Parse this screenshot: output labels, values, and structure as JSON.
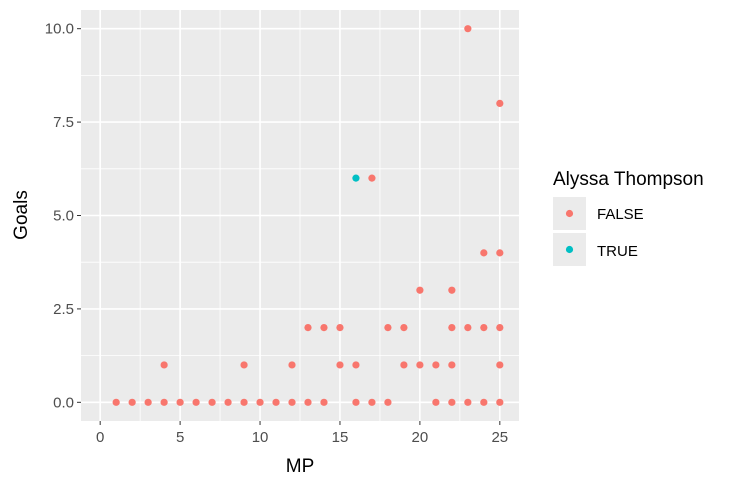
{
  "chart_data": {
    "type": "scatter",
    "xlabel": "MP",
    "ylabel": "Goals",
    "xlim": [
      -1.2,
      26.2
    ],
    "ylim": [
      -0.5,
      10.5
    ],
    "x_ticks": [
      0,
      5,
      10,
      15,
      20,
      25
    ],
    "y_ticks": [
      0,
      2.5,
      5,
      7.5,
      10
    ],
    "y_tick_labels": [
      "0.0",
      "2.5",
      "5.0",
      "7.5",
      "10.0"
    ],
    "grid": true,
    "legend": {
      "title": "Alyssa Thompson",
      "position": "right",
      "entries": [
        {
          "label": "FALSE",
          "color": "#F8766D"
        },
        {
          "label": "TRUE",
          "color": "#00BFC4"
        }
      ]
    },
    "series": [
      {
        "name": "FALSE",
        "color": "#F8766D",
        "points": [
          [
            1,
            0
          ],
          [
            2,
            0
          ],
          [
            3,
            0
          ],
          [
            4,
            0
          ],
          [
            4,
            1
          ],
          [
            5,
            0
          ],
          [
            6,
            0
          ],
          [
            7,
            0
          ],
          [
            8,
            0
          ],
          [
            9,
            0
          ],
          [
            9,
            1
          ],
          [
            10,
            0
          ],
          [
            11,
            0
          ],
          [
            12,
            0
          ],
          [
            12,
            1
          ],
          [
            13,
            0
          ],
          [
            13,
            2
          ],
          [
            14,
            0
          ],
          [
            14,
            2
          ],
          [
            15,
            1
          ],
          [
            15,
            2
          ],
          [
            16,
            0
          ],
          [
            16,
            1
          ],
          [
            17,
            0
          ],
          [
            17,
            6
          ],
          [
            18,
            0
          ],
          [
            18,
            2
          ],
          [
            19,
            1
          ],
          [
            19,
            2
          ],
          [
            20,
            1
          ],
          [
            20,
            3
          ],
          [
            21,
            0
          ],
          [
            21,
            1
          ],
          [
            22,
            0
          ],
          [
            22,
            1
          ],
          [
            22,
            2
          ],
          [
            22,
            3
          ],
          [
            23,
            0
          ],
          [
            23,
            2
          ],
          [
            23,
            10
          ],
          [
            24,
            0
          ],
          [
            24,
            2
          ],
          [
            24,
            4
          ],
          [
            25,
            0
          ],
          [
            25,
            1
          ],
          [
            25,
            2
          ],
          [
            25,
            4
          ],
          [
            25,
            8
          ]
        ]
      },
      {
        "name": "TRUE",
        "color": "#00BFC4",
        "points": [
          [
            16,
            6
          ]
        ]
      }
    ]
  },
  "colors": {
    "panel_background": "#EBEBEB",
    "grid_major": "#FFFFFF",
    "tick_text": "#4D4D4D"
  }
}
